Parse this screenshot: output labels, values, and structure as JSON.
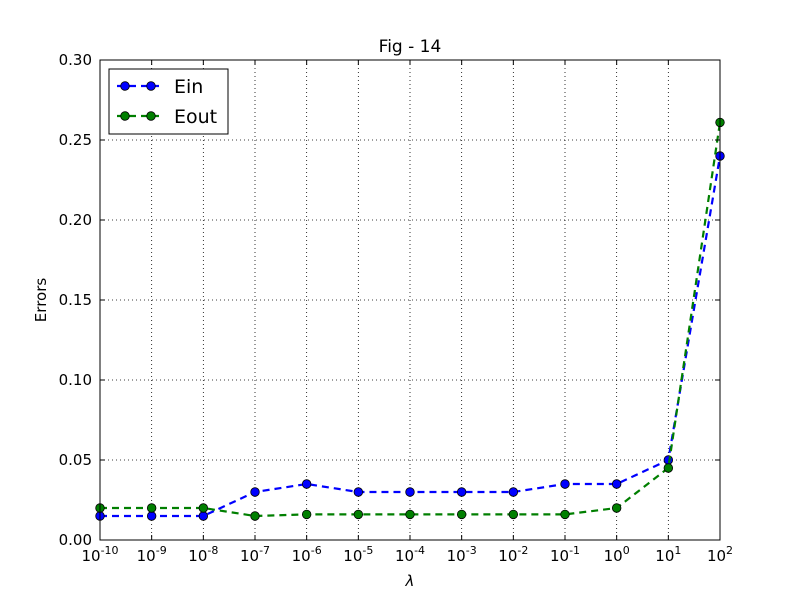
{
  "chart_data": {
    "type": "line",
    "title": "Fig - 14",
    "xlabel": "λ",
    "ylabel": "Errors",
    "x_scale": "log",
    "x": [
      1e-10,
      1e-09,
      1e-08,
      1e-07,
      1e-06,
      1e-05,
      0.0001,
      0.001,
      0.01,
      0.1,
      1,
      10,
      100
    ],
    "x_tick_labels": [
      {
        "base": "10",
        "exp": "-10"
      },
      {
        "base": "10",
        "exp": "-9"
      },
      {
        "base": "10",
        "exp": "-8"
      },
      {
        "base": "10",
        "exp": "-7"
      },
      {
        "base": "10",
        "exp": "-6"
      },
      {
        "base": "10",
        "exp": "-5"
      },
      {
        "base": "10",
        "exp": "-4"
      },
      {
        "base": "10",
        "exp": "-3"
      },
      {
        "base": "10",
        "exp": "-2"
      },
      {
        "base": "10",
        "exp": "-1"
      },
      {
        "base": "10",
        "exp": "0"
      },
      {
        "base": "10",
        "exp": "1"
      },
      {
        "base": "10",
        "exp": "2"
      }
    ],
    "y_ticks": [
      0.0,
      0.05,
      0.1,
      0.15,
      0.2,
      0.25,
      0.3
    ],
    "y_tick_labels": [
      "0.00",
      "0.05",
      "0.10",
      "0.15",
      "0.20",
      "0.25",
      "0.30"
    ],
    "ylim": [
      0.0,
      0.3
    ],
    "grid": true,
    "legend_position": "top-left",
    "series": [
      {
        "name": "Ein",
        "color": "#0000ff",
        "marker_color": "#0000ff",
        "values": [
          0.015,
          0.015,
          0.015,
          0.03,
          0.035,
          0.03,
          0.03,
          0.03,
          0.03,
          0.035,
          0.035,
          0.05,
          0.24
        ]
      },
      {
        "name": "Eout",
        "color": "#007f00",
        "marker_color": "#007f00",
        "values": [
          0.02,
          0.02,
          0.02,
          0.015,
          0.016,
          0.016,
          0.016,
          0.016,
          0.016,
          0.016,
          0.02,
          0.045,
          0.261
        ]
      }
    ]
  }
}
